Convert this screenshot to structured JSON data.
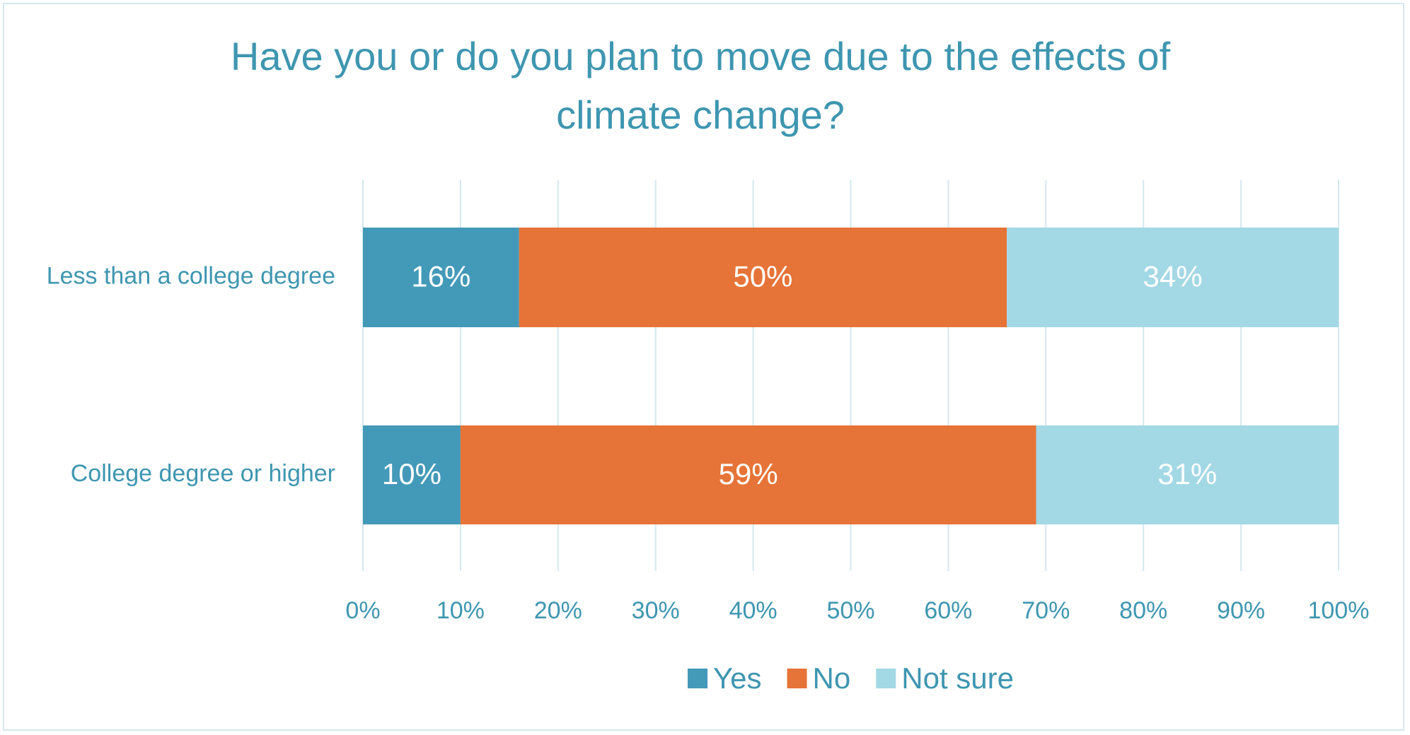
{
  "chart_data": {
    "type": "stacked_barh",
    "title": "Have you or do you plan to move due to the effects of climate change?",
    "categories": [
      "Less than a college degree",
      "College degree or higher"
    ],
    "series": [
      {
        "name": "Yes",
        "color": "#4399b8",
        "values": [
          16,
          10
        ],
        "value_labels": [
          "16%",
          "10%"
        ]
      },
      {
        "name": "No",
        "color": "#e67337",
        "values": [
          50,
          59
        ],
        "value_labels": [
          "50%",
          "59%"
        ]
      },
      {
        "name": "Not sure",
        "color": "#a3d8e5",
        "values": [
          34,
          31
        ],
        "value_labels": [
          "34%",
          "31%"
        ]
      }
    ],
    "xlim": [
      0,
      100
    ],
    "xticks": [
      {
        "value": 0,
        "label": "0%"
      },
      {
        "value": 10,
        "label": "10%"
      },
      {
        "value": 20,
        "label": "20%"
      },
      {
        "value": 30,
        "label": "30%"
      },
      {
        "value": 40,
        "label": "40%"
      },
      {
        "value": 50,
        "label": "50%"
      },
      {
        "value": 60,
        "label": "60%"
      },
      {
        "value": 70,
        "label": "70%"
      },
      {
        "value": 80,
        "label": "80%"
      },
      {
        "value": 90,
        "label": "90%"
      },
      {
        "value": 100,
        "label": "100%"
      }
    ],
    "grid": true,
    "legend": "bottom"
  }
}
